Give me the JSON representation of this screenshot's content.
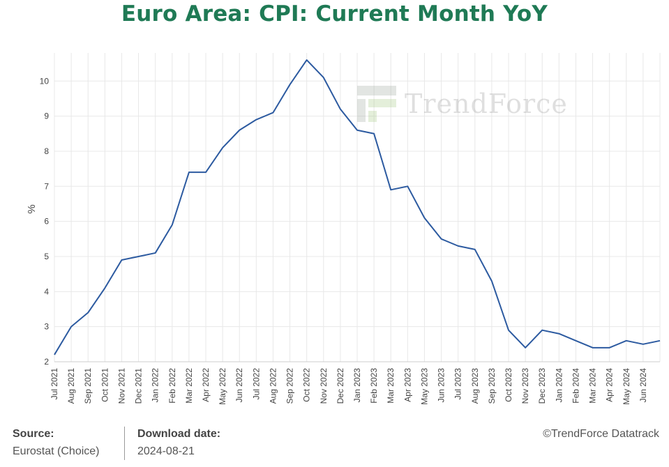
{
  "title": "Euro Area: CPI: Current Month YoY",
  "watermark": "TrendForce",
  "footer": {
    "source_label": "Source:",
    "source_value": "Eurostat (Choice)",
    "download_label": "Download date:",
    "download_value": "2024-08-21",
    "copyright": "©TrendForce Datatrack"
  },
  "colors": {
    "line": "#2c5aa0",
    "title": "#1f7a55",
    "grid": "#e8e8e8"
  },
  "chart_data": {
    "type": "line",
    "title": "Euro Area: CPI: Current Month YoY",
    "xlabel": "",
    "ylabel": "%",
    "ylim": [
      2,
      10.8
    ],
    "yticks": [
      2,
      3,
      4,
      5,
      6,
      7,
      8,
      9,
      10
    ],
    "grid": true,
    "categories": [
      "Jul 2021",
      "Aug 2021",
      "Sep 2021",
      "Oct 2021",
      "Nov 2021",
      "Dec 2021",
      "Jan 2022",
      "Feb 2022",
      "Mar 2022",
      "Apr 2022",
      "May 2022",
      "Jun 2022",
      "Jul 2022",
      "Aug 2022",
      "Sep 2022",
      "Oct 2022",
      "Nov 2022",
      "Dec 2022",
      "Jan 2023",
      "Feb 2023",
      "Mar 2023",
      "Apr 2023",
      "May 2023",
      "Jun 2023",
      "Jul 2023",
      "Aug 2023",
      "Sep 2023",
      "Oct 2023",
      "Nov 2023",
      "Dec 2023",
      "Jan 2024",
      "Feb 2024",
      "Mar 2024",
      "Apr 2024",
      "May 2024",
      "Jun 2024",
      "Jul 2024"
    ],
    "tick_labels": [
      "Jul 2021",
      "Aug 2021",
      "Sep 2021",
      "Oct 2021",
      "Nov 2021",
      "Dec 2021",
      "Jan 2022",
      "Feb 2022",
      "Mar 2022",
      "Apr 2022",
      "May 2022",
      "Jun 2022",
      "Jul 2022",
      "Aug 2022",
      "Sep 2022",
      "Oct 2022",
      "Nov 2022",
      "Dec 2022",
      "Jan 2023",
      "Feb 2023",
      "Mar 2023",
      "Apr 2023",
      "May 2023",
      "Jun 2023",
      "Jul 2023",
      "Aug 2023",
      "Sep 2023",
      "Oct 2023",
      "Nov 2023",
      "Dec 2023",
      "Jan 2024",
      "Feb 2024",
      "Mar 2024",
      "Apr 2024",
      "May 2024",
      "Jun 2024"
    ],
    "series": [
      {
        "values": [
          2.2,
          3.0,
          3.4,
          4.1,
          4.9,
          5.0,
          5.1,
          5.9,
          7.4,
          7.4,
          8.1,
          8.6,
          8.9,
          9.1,
          9.9,
          10.6,
          10.1,
          9.2,
          8.6,
          8.5,
          6.9,
          7.0,
          6.1,
          5.5,
          5.3,
          5.2,
          4.3,
          2.9,
          2.4,
          2.9,
          2.8,
          2.6,
          2.4,
          2.4,
          2.6,
          2.5,
          2.6
        ]
      }
    ]
  }
}
